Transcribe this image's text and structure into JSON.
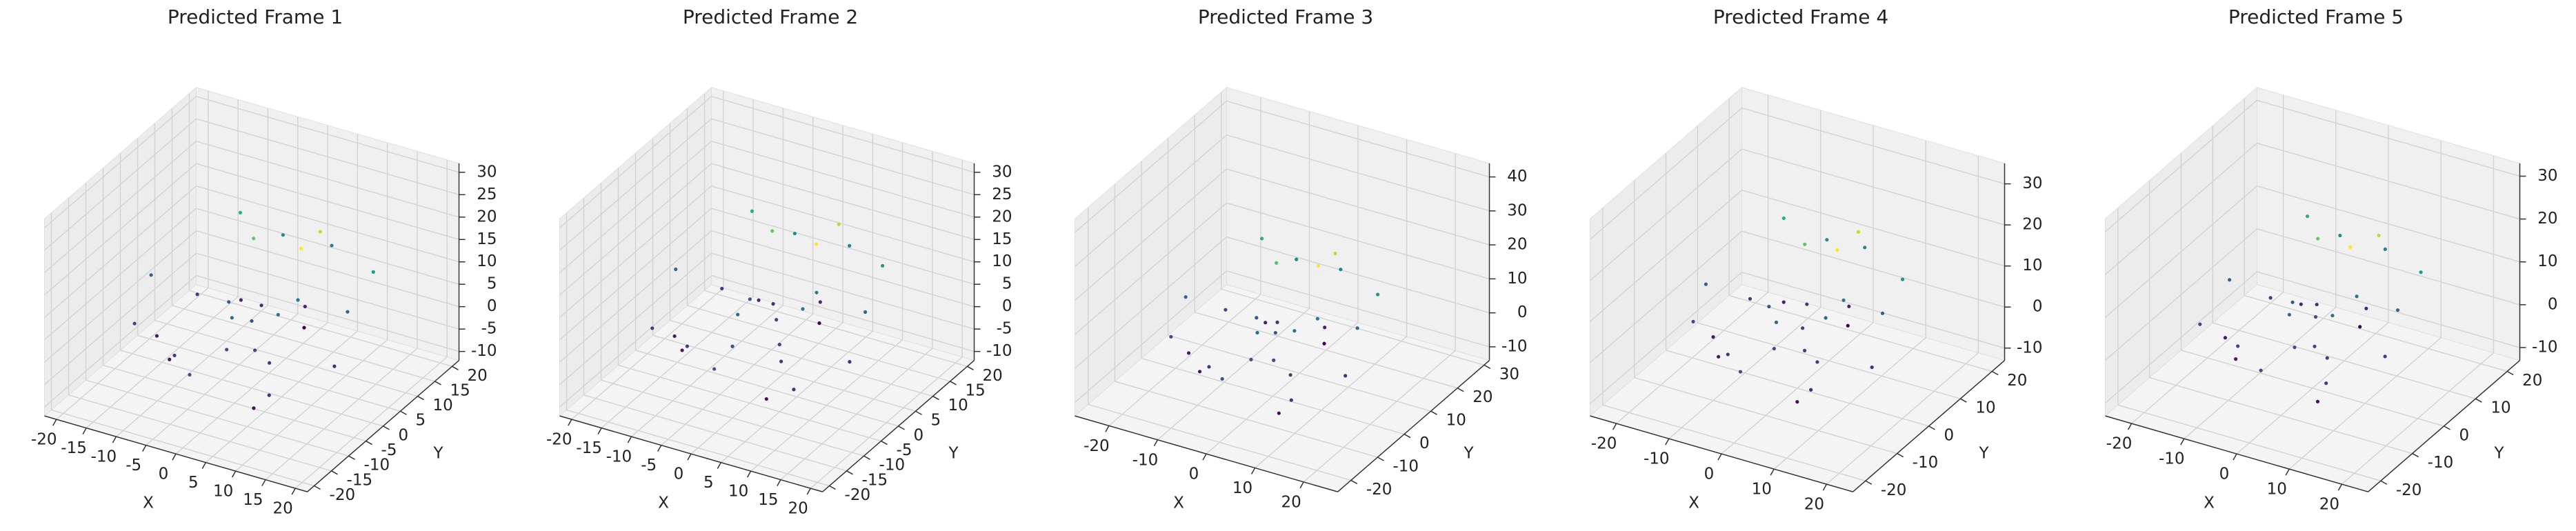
{
  "chart_data": [
    {
      "type": "scatter3d",
      "title": "Predicted Frame 1",
      "xlabel": "X",
      "ylabel": "Y",
      "colormap": "viridis",
      "xlim": [
        -22,
        22
      ],
      "ylim": [
        -22,
        22
      ],
      "zlim": [
        -12,
        32
      ],
      "xticks": [
        -20,
        -15,
        -10,
        -5,
        0,
        5,
        10,
        15,
        20
      ],
      "yticks": [
        -20,
        -15,
        -10,
        -5,
        0,
        5,
        10,
        15,
        20
      ],
      "zticks": [
        -10,
        -5,
        0,
        5,
        10,
        15,
        20,
        25,
        30
      ],
      "x": [
        -12,
        -8,
        -5,
        -3,
        -1,
        0,
        2,
        4,
        6,
        9,
        12,
        15,
        -15,
        -10,
        -6,
        -2,
        1,
        3,
        5,
        8,
        11,
        -18,
        -4,
        7,
        14,
        -7,
        0,
        10,
        -13,
        3
      ],
      "y": [
        5,
        -10,
        2,
        8,
        -4,
        0,
        12,
        -6,
        3,
        -15,
        7,
        -2,
        -8,
        14,
        -12,
        4,
        -9,
        10,
        -1,
        6,
        -14,
        2,
        16,
        -7,
        11,
        9,
        -18,
        -3,
        -5,
        18
      ],
      "z": [
        1,
        -2,
        4,
        0,
        6,
        3,
        -1,
        2,
        8,
        -3,
        5,
        0,
        2,
        14,
        1,
        18,
        3,
        -4,
        7,
        22,
        0,
        5,
        10,
        1,
        12,
        -1,
        3,
        25,
        -2,
        9
      ]
    },
    {
      "type": "scatter3d",
      "title": "Predicted Frame 2",
      "xlabel": "X",
      "ylabel": "Y",
      "colormap": "viridis",
      "xlim": [
        -22,
        22
      ],
      "ylim": [
        -22,
        22
      ],
      "zlim": [
        -12,
        32
      ],
      "xticks": [
        -20,
        -15,
        -10,
        -5,
        0,
        5,
        10,
        15,
        20
      ],
      "yticks": [
        -20,
        -15,
        -10,
        -5,
        0,
        5,
        10,
        15,
        20
      ],
      "zticks": [
        -10,
        -5,
        0,
        5,
        10,
        15,
        20,
        25,
        30
      ],
      "x": [
        -11,
        -9,
        -4,
        -3,
        -2,
        1,
        2,
        5,
        6,
        8,
        13,
        15,
        -14,
        -10,
        -7,
        -2,
        0,
        3,
        6,
        8,
        12,
        -17,
        -4,
        7,
        13,
        -6,
        1,
        10,
        -12,
        4
      ],
      "y": [
        6,
        -9,
        2,
        7,
        -5,
        1,
        12,
        -5,
        4,
        -14,
        6,
        -2,
        -9,
        13,
        -11,
        5,
        -10,
        10,
        0,
        7,
        -13,
        3,
        15,
        -8,
        11,
        8,
        -17,
        -3,
        -6,
        17
      ],
      "z": [
        2,
        -1,
        5,
        1,
        7,
        3,
        0,
        3,
        9,
        -2,
        6,
        1,
        2,
        15,
        2,
        19,
        4,
        -3,
        8,
        23,
        1,
        6,
        11,
        2,
        13,
        0,
        4,
        26,
        -1,
        10
      ]
    },
    {
      "type": "scatter3d",
      "title": "Predicted Frame 3",
      "xlabel": "X",
      "ylabel": "Y",
      "colormap": "viridis",
      "xlim": [
        -27,
        27
      ],
      "ylim": [
        -25,
        32
      ],
      "zlim": [
        -14,
        44
      ],
      "xticks": [
        -20,
        -10,
        0,
        10,
        20
      ],
      "yticks": [
        -20,
        -10,
        0,
        10,
        20,
        30
      ],
      "zticks": [
        -10,
        0,
        10,
        20,
        30,
        40
      ],
      "x": [
        -13,
        -9,
        -5,
        -4,
        -1,
        0,
        3,
        4,
        7,
        10,
        13,
        16,
        -16,
        -11,
        -6,
        -2,
        1,
        4,
        5,
        9,
        12,
        -19,
        -5,
        8,
        15,
        -7,
        0,
        11,
        -14,
        3
      ],
      "y": [
        6,
        -11,
        3,
        9,
        -4,
        1,
        14,
        -7,
        4,
        -16,
        8,
        -2,
        -9,
        16,
        -13,
        5,
        -10,
        12,
        -1,
        7,
        -15,
        2,
        18,
        -8,
        12,
        10,
        -19,
        -3,
        -6,
        20
      ],
      "z": [
        2,
        -3,
        5,
        0,
        7,
        4,
        -2,
        3,
        9,
        -4,
        6,
        0,
        3,
        17,
        1,
        21,
        4,
        -5,
        8,
        27,
        0,
        6,
        12,
        1,
        14,
        -2,
        4,
        31,
        -3,
        11
      ]
    },
    {
      "type": "scatter3d",
      "title": "Predicted Frame 4",
      "xlabel": "X",
      "ylabel": "Y",
      "colormap": "viridis",
      "xlim": [
        -25,
        25
      ],
      "ylim": [
        -24,
        24
      ],
      "zlim": [
        -13,
        35
      ],
      "xticks": [
        -20,
        -10,
        0,
        10,
        20
      ],
      "yticks": [
        -20,
        -10,
        0,
        10,
        20
      ],
      "zticks": [
        -10,
        0,
        10,
        20,
        30
      ],
      "x": [
        -12,
        -9,
        -6,
        -3,
        -1,
        1,
        2,
        5,
        7,
        9,
        12,
        16,
        -15,
        -11,
        -6,
        -1,
        1,
        3,
        6,
        8,
        11,
        -18,
        -4,
        8,
        14,
        -8,
        0,
        10,
        -13,
        2
      ],
      "y": [
        5,
        -10,
        1,
        8,
        -5,
        0,
        13,
        -6,
        3,
        -15,
        7,
        -3,
        -8,
        14,
        -12,
        4,
        -9,
        11,
        -1,
        6,
        -14,
        1,
        16,
        -7,
        10,
        9,
        -18,
        -4,
        -5,
        18
      ],
      "z": [
        1,
        -2,
        4,
        1,
        6,
        2,
        -1,
        2,
        9,
        -3,
        5,
        0,
        3,
        15,
        1,
        19,
        3,
        -4,
        7,
        24,
        0,
        5,
        11,
        1,
        12,
        -1,
        3,
        27,
        -2,
        10
      ]
    },
    {
      "type": "scatter3d",
      "title": "Predicted Frame 5",
      "xlabel": "X",
      "ylabel": "Y",
      "colormap": "viridis",
      "xlim": [
        -25,
        25
      ],
      "ylim": [
        -24,
        24
      ],
      "zlim": [
        -13,
        33
      ],
      "xticks": [
        -20,
        -10,
        0,
        10,
        20
      ],
      "yticks": [
        -20,
        -10,
        0,
        10,
        20
      ],
      "zticks": [
        -10,
        0,
        10,
        20,
        30
      ],
      "x": [
        -11,
        -8,
        -5,
        -4,
        -2,
        0,
        3,
        4,
        6,
        10,
        12,
        15,
        -16,
        -10,
        -7,
        -2,
        2,
        3,
        5,
        9,
        11,
        -17,
        -5,
        7,
        14,
        -7,
        1,
        9,
        -13,
        3
      ],
      "y": [
        5,
        -11,
        2,
        8,
        -4,
        1,
        12,
        -6,
        4,
        -15,
        7,
        -2,
        -9,
        15,
        -12,
        5,
        -9,
        10,
        -2,
        6,
        -14,
        2,
        17,
        -7,
        11,
        8,
        -18,
        -3,
        -6,
        18
      ],
      "z": [
        1,
        -2,
        4,
        0,
        6,
        3,
        -1,
        2,
        8,
        -3,
        5,
        1,
        2,
        14,
        2,
        18,
        3,
        -4,
        7,
        22,
        1,
        5,
        10,
        1,
        12,
        -1,
        3,
        25,
        -2,
        9
      ]
    }
  ]
}
